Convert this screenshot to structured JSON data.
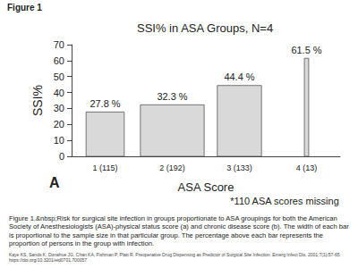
{
  "heading": "Figure 1",
  "caption": "Figure 1.&nbsp;Risk for surgical site infection in groups proportionate to ASA groupings for both the American Society of Anesthesiologists (ASA)-physical status score (a) and chronic disease score (b). The width of each bar is proportional to the sample size in that particular group. The percentage above each bar represents the proportion of persons in the group with infection.",
  "source": "Kaye KS, Sands K, Donahue JG, Chan KA, Fishman P, Platt R. Preoperative Drug Dispensing as Predictor of Surgical Site Infection. Emerg Infect Dis. 2001;7(1):57-65. https://doi.org/10.3201/eid0701.700057",
  "chart_data": {
    "type": "bar",
    "title": "SSI% in ASA Groups, N=4",
    "x_label": "ASA Score",
    "y_label": "SSI%",
    "categories": [
      "1 (115)",
      "2 (192)",
      "3 (133)",
      "4 (13)"
    ],
    "values": [
      27.8,
      32.3,
      44.4,
      61.5
    ],
    "value_labels": [
      "27.8 %",
      "32.3 %",
      "44.4 %",
      "61.5 %"
    ],
    "sample_sizes": [
      115,
      192,
      133,
      13
    ],
    "color": "#d9d9d9",
    "ylim": [
      0,
      70
    ],
    "yticks": [
      0,
      10,
      20,
      30,
      40,
      50,
      60,
      70
    ],
    "grid": false,
    "data_labels": true,
    "annotations": [
      "A",
      "*110 ASA scores missing"
    ]
  }
}
